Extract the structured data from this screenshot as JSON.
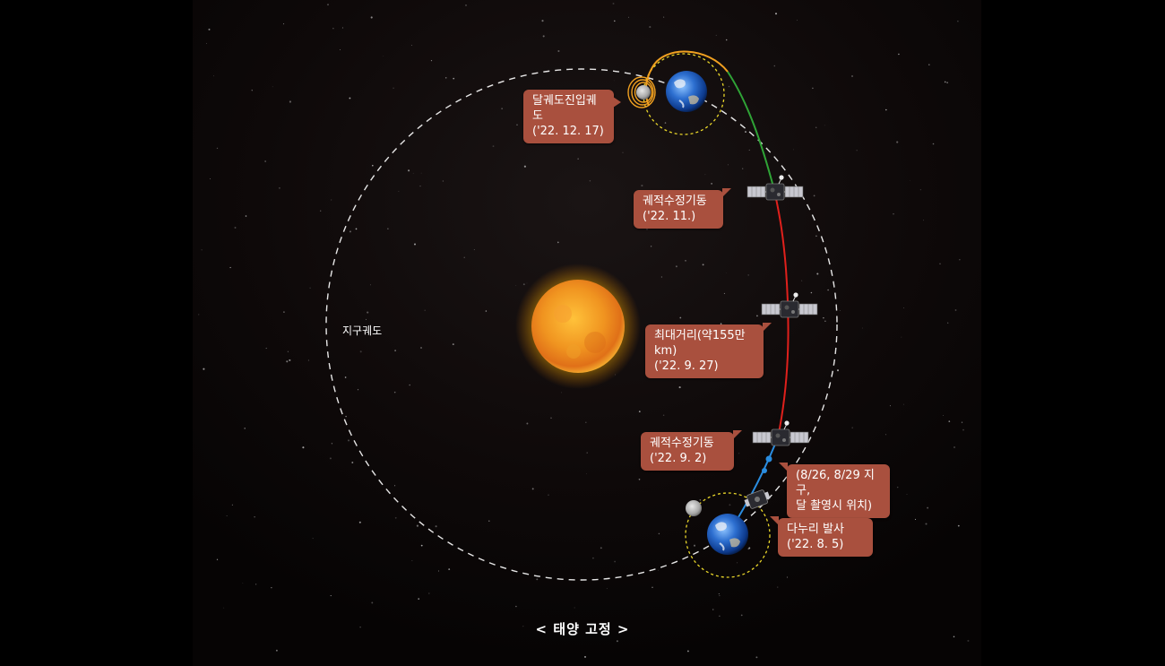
{
  "labels": {
    "earth_orbit": "지구궤도",
    "footer": "< 태양 고정 >"
  },
  "callouts": {
    "lunar_transfer": {
      "line1": "달궤도진입궤도",
      "line2": "('22. 12. 17)"
    },
    "correction_nov": {
      "line1": "궤적수정기동",
      "line2": "('22. 11.)"
    },
    "max_distance": {
      "line1": "최대거리(약155만km)",
      "line2": "('22. 9. 27)"
    },
    "correction_sep": {
      "line1": "궤적수정기동",
      "line2": "('22. 9. 2)"
    },
    "photo_position": {
      "line1": "(8/26, 8/29 지구,",
      "line2": "달 촬영시 위치)"
    },
    "launch": {
      "line1": "다누리 발사",
      "line2": "('22. 8. 5)"
    }
  },
  "icons": {
    "sun": "sun-icon",
    "earth": "earth-icon",
    "moon": "moon-icon",
    "spacecraft": "spacecraft-icon"
  },
  "colors": {
    "background": "#0b0707",
    "callout": "#a9503e",
    "trajectory_blue": "#2a8de0",
    "trajectory_red": "#e0201c",
    "trajectory_green": "#2fa336",
    "lunar_orbit_orange": "#f0a020",
    "moon_orbit_yellow": "#e9d62a",
    "earth_orbit_dashed": "#ffffff"
  }
}
